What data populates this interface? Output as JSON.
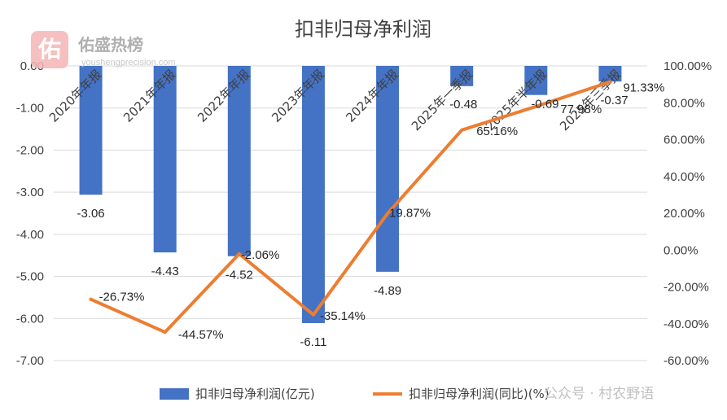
{
  "chart_data": {
    "type": "bar+line",
    "title": "扣非归母净利润",
    "categories": [
      "2020年年报",
      "2021年年报",
      "2022年年报",
      "2023年年报",
      "2024年年报",
      "2025年一季报",
      "2025年半年报",
      "2025年三季报"
    ],
    "series": [
      {
        "name": "扣非归母净利润(亿元)",
        "type": "bar",
        "axis": "left",
        "color": "#4472c4",
        "values": [
          -3.06,
          -4.43,
          -4.52,
          -6.11,
          -4.89,
          -0.48,
          -0.69,
          -0.37
        ],
        "labels": [
          "-3.06",
          "-4.43",
          "-4.52",
          "-6.11",
          "-4.89",
          "-0.48",
          "-0.69",
          "-0.37"
        ]
      },
      {
        "name": "扣非归母净利润(同比)(%)",
        "type": "line",
        "axis": "right",
        "color": "#ed7d31",
        "values": [
          -26.73,
          -44.57,
          -2.06,
          -35.14,
          19.87,
          65.16,
          77.98,
          91.33
        ],
        "labels": [
          "-26.73%",
          "-44.57%",
          "-2.06%",
          "-35.14%",
          "19.87%",
          "65.16%",
          "77.98%",
          "91.33%"
        ]
      }
    ],
    "y_left": {
      "min": -7,
      "max": 0,
      "ticks": [
        0,
        -1,
        -2,
        -3,
        -4,
        -5,
        -6,
        -7
      ],
      "tick_labels": [
        "0.00",
        "-1.00",
        "-2.00",
        "-3.00",
        "-4.00",
        "-5.00",
        "-6.00",
        "-7.00"
      ]
    },
    "y_right": {
      "min": -60,
      "max": 100,
      "ticks": [
        100,
        80,
        60,
        40,
        20,
        0,
        -20,
        -40,
        -60
      ],
      "tick_labels": [
        "100.00%",
        "80.00%",
        "60.00%",
        "40.00%",
        "20.00%",
        "0.00%",
        "-20.00%",
        "-40.00%",
        "-60.00%"
      ]
    },
    "grid": true,
    "legend": "bottom"
  },
  "watermark": {
    "logo_char": "佑",
    "name": "佑盛热榜",
    "url": "youshengprecision.com",
    "logo_color": "#f08a8a"
  },
  "source_note": "公众号 · 村农野语"
}
